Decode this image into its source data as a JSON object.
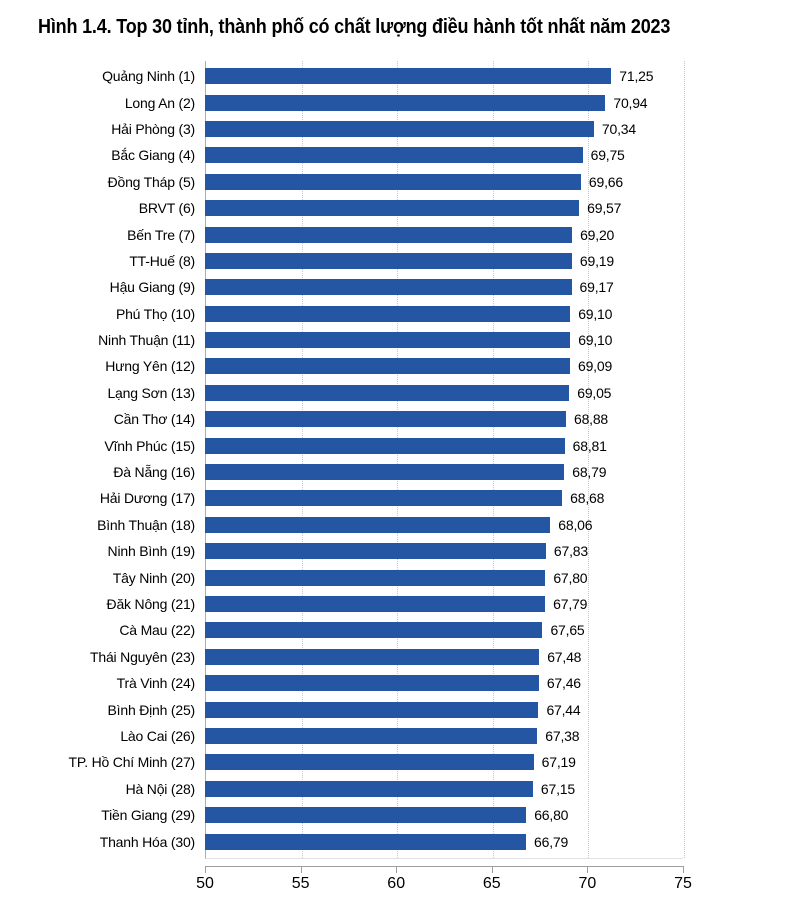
{
  "title": "Hình 1.4. Top 30 tỉnh, thành phố có chất lượng điều hành tốt nhất năm 2023",
  "colors": {
    "bar": "#2456A4",
    "axis": "#9d9d9d",
    "gridline": "#c9c9c9",
    "text": "#000000"
  },
  "chart_data": {
    "type": "bar",
    "orientation": "horizontal",
    "title": "Hình 1.4. Top 30 tỉnh, thành phố có chất lượng điều hành tốt nhất năm 2023",
    "categories": [
      "Quảng Ninh (1)",
      "Long An (2)",
      "Hải Phòng (3)",
      "Bắc Giang (4)",
      "Đồng Tháp (5)",
      "BRVT (6)",
      "Bến Tre (7)",
      "TT-Huế (8)",
      "Hậu Giang (9)",
      "Phú Thọ (10)",
      "Ninh Thuận (11)",
      "Hưng Yên (12)",
      "Lạng Sơn (13)",
      "Cần Thơ (14)",
      "Vĩnh Phúc (15)",
      "Đà Nẵng (16)",
      "Hải Dương (17)",
      "Bình Thuận (18)",
      "Ninh Bình (19)",
      "Tây Ninh (20)",
      "Đăk Nông (21)",
      "Cà Mau (22)",
      "Thái Nguyên (23)",
      "Trà Vinh (24)",
      "Bình Định (25)",
      "Lào Cai (26)",
      "TP. Hồ Chí Minh (27)",
      "Hà Nội (28)",
      "Tiền Giang (29)",
      "Thanh Hóa (30)"
    ],
    "values": [
      71.25,
      70.94,
      70.34,
      69.75,
      69.66,
      69.57,
      69.2,
      69.19,
      69.17,
      69.1,
      69.1,
      69.09,
      69.05,
      68.88,
      68.81,
      68.79,
      68.68,
      68.06,
      67.83,
      67.8,
      67.79,
      67.65,
      67.48,
      67.46,
      67.44,
      67.38,
      67.19,
      67.15,
      66.8,
      66.79
    ],
    "value_labels": [
      "71,25",
      "70,94",
      "70,34",
      "69,75",
      "69,66",
      "69,57",
      "69,20",
      "69,19",
      "69,17",
      "69,10",
      "69,10",
      "69,09",
      "69,05",
      "68,88",
      "68,81",
      "68,79",
      "68,68",
      "68,06",
      "67,83",
      "67,80",
      "67,79",
      "67,65",
      "67,48",
      "67,46",
      "67,44",
      "67,38",
      "67,19",
      "67,15",
      "66,80",
      "66,79"
    ],
    "xlim": [
      50,
      75
    ],
    "x_tick_values": [
      50,
      55,
      60,
      65,
      70,
      75
    ],
    "x_tick_labels": [
      "50",
      "55",
      "60",
      "65",
      "70",
      "75"
    ],
    "gridlines_at": [
      55,
      60,
      65,
      70,
      75
    ],
    "grid": "vertical-dotted",
    "legend_position": "none",
    "xlabel": "",
    "ylabel": ""
  }
}
